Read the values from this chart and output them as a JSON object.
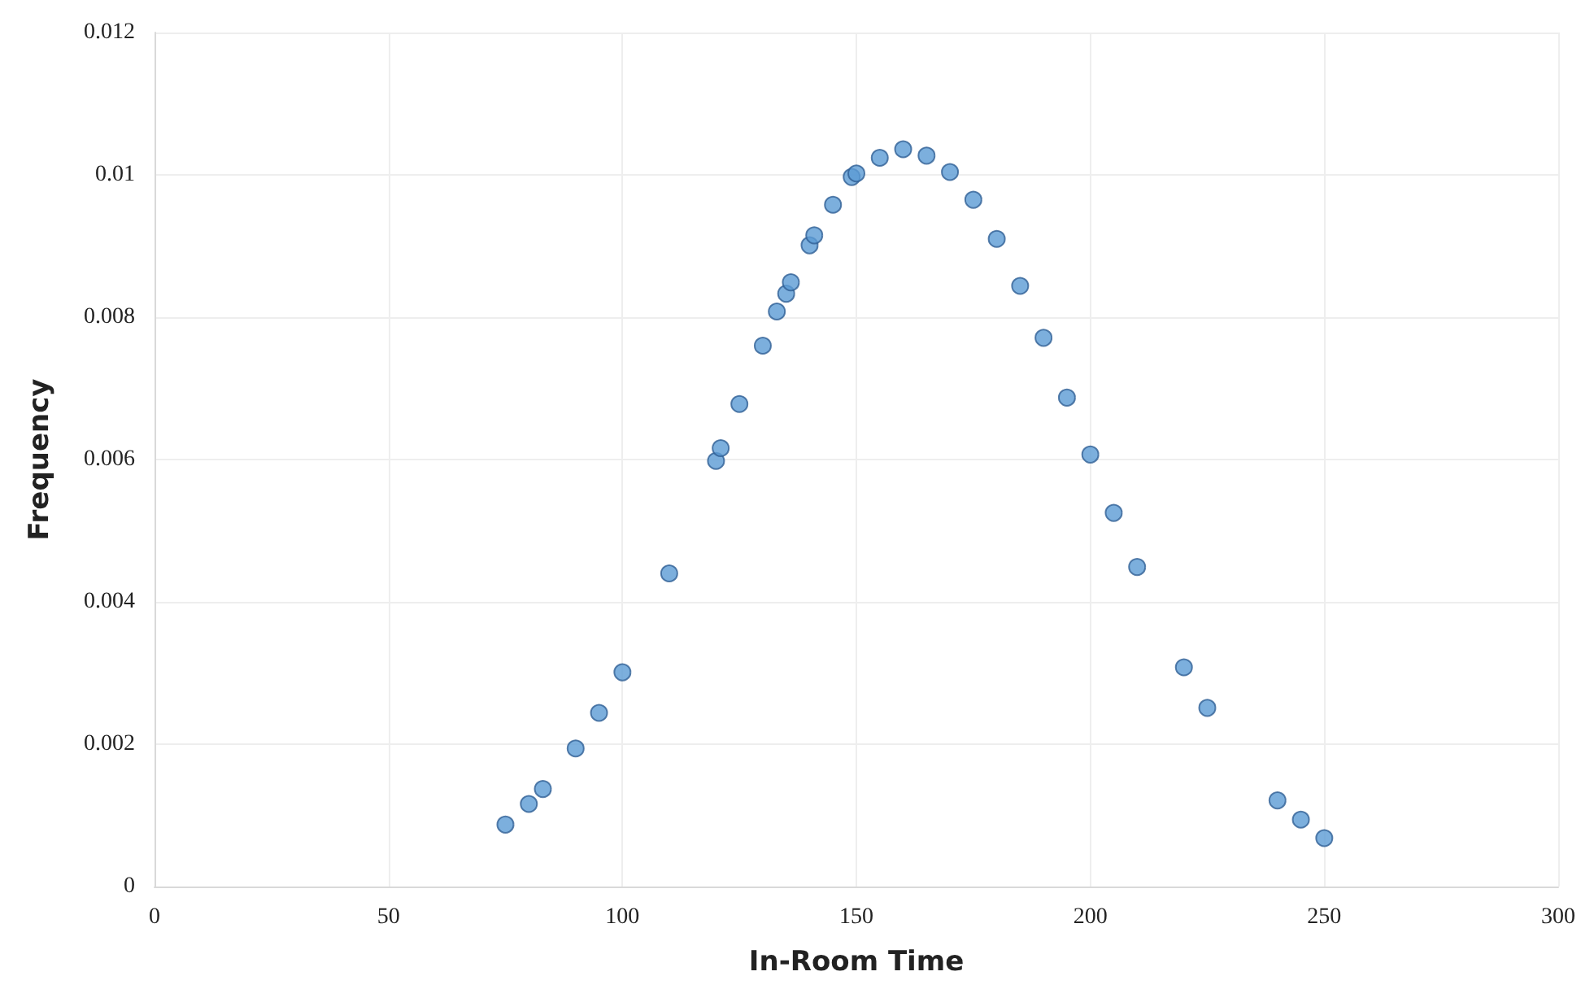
{
  "chart_data": {
    "type": "scatter",
    "xlabel": "In-Room Time",
    "ylabel": "Frequency",
    "x": [
      75,
      80,
      83,
      90,
      95,
      100,
      110,
      120,
      121,
      125,
      130,
      133,
      135,
      136,
      140,
      141,
      145,
      149,
      150,
      155,
      160,
      165,
      170,
      175,
      180,
      185,
      190,
      195,
      200,
      205,
      210,
      220,
      225,
      240,
      245,
      250
    ],
    "series": [
      {
        "color": "#5b9bd5",
        "values": [
          0.00087,
          0.00116,
          0.00137,
          0.00194,
          0.00244,
          0.00301,
          0.0044,
          0.00598,
          0.00616,
          0.00678,
          0.0076,
          0.00808,
          0.00833,
          0.00849,
          0.00901,
          0.00915,
          0.00958,
          0.00997,
          0.01002,
          0.01024,
          0.01036,
          0.01027,
          0.01004,
          0.00965,
          0.0091,
          0.00844,
          0.00771,
          0.00687,
          0.00607,
          0.00525,
          0.00449,
          0.00308,
          0.00251,
          0.00121,
          0.00094,
          0.00068
        ]
      }
    ],
    "xlim": [
      0,
      300
    ],
    "xticks": [
      0,
      50,
      100,
      150,
      200,
      250,
      300
    ],
    "ylim": [
      0,
      0.012
    ],
    "yticks": [
      0,
      0.002,
      0.004,
      0.006,
      0.008,
      0.01,
      0.012
    ],
    "grid": true,
    "marker": "circle"
  }
}
